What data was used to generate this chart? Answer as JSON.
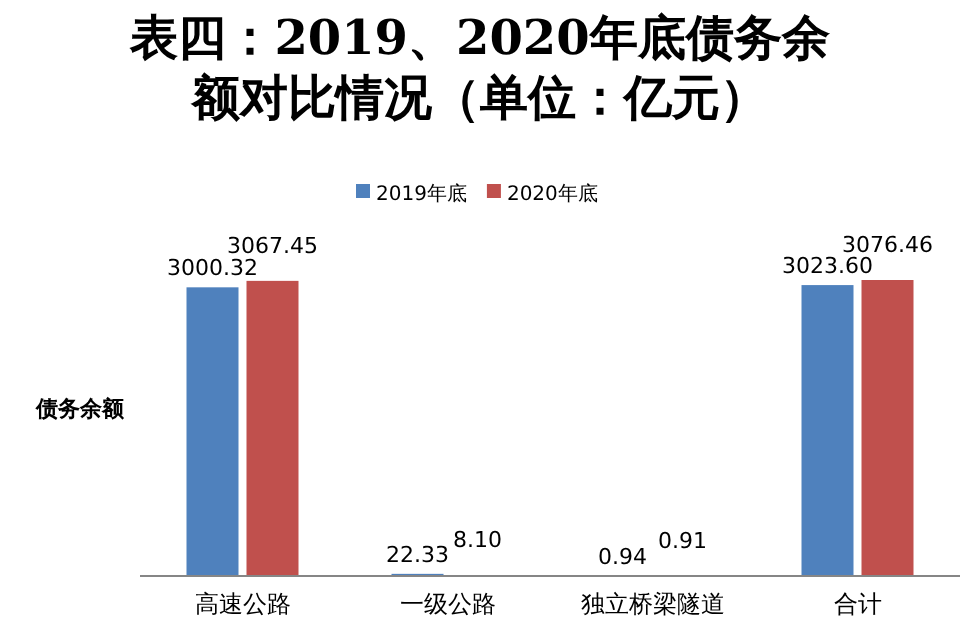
{
  "chart_data": {
    "type": "bar",
    "title": "表四：2019、2020年底债务余额对比情况（单位：亿元）",
    "ylabel": "债务余额",
    "categories": [
      "高速公路",
      "一级公路",
      "独立桥梁隧道",
      "合计"
    ],
    "series": [
      {
        "name": "2019年底",
        "color": "#4f81bd",
        "values": [
          3000.32,
          22.33,
          0.94,
          3023.6
        ],
        "value_labels": [
          "3000.32",
          "22.33",
          "0.94",
          "3023.60"
        ]
      },
      {
        "name": "2020年底",
        "color": "#c0504d",
        "values": [
          3067.45,
          8.1,
          0.91,
          3076.46
        ],
        "value_labels": [
          "3067.45",
          "8.10",
          "0.91",
          "3076.46"
        ]
      }
    ],
    "legend": "top"
  }
}
